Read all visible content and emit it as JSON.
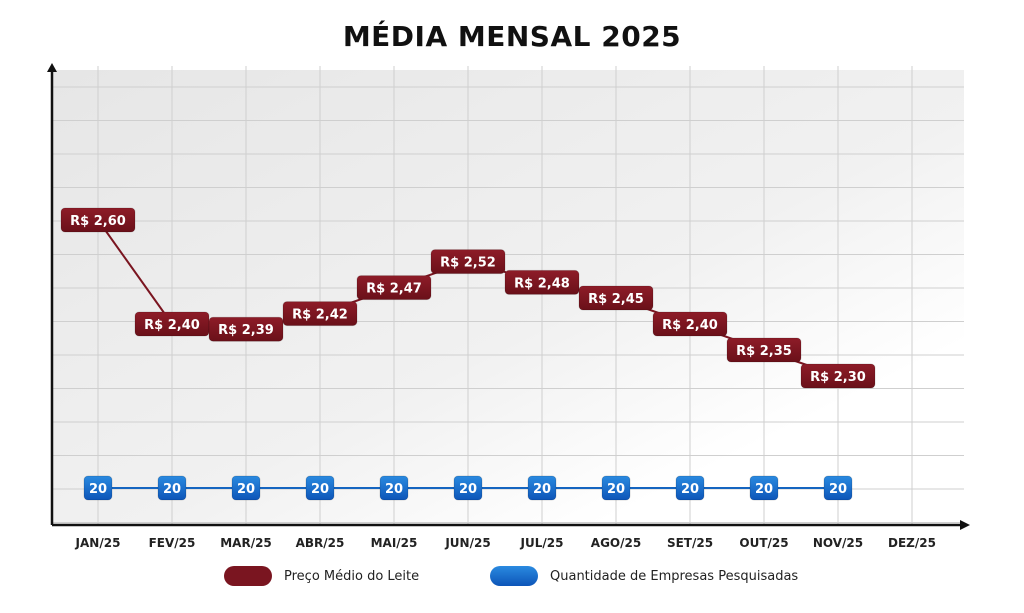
{
  "chart_data": {
    "type": "line",
    "title": "MÉDIA MENSAL 2025",
    "xlabel": "",
    "ylabel": "",
    "categories": [
      "JAN/25",
      "FEV/25",
      "MAR/25",
      "ABR/25",
      "MAI/25",
      "JUN/25",
      "JUL/25",
      "AGO/25",
      "SET/25",
      "OUT/25",
      "NOV/25",
      "DEZ/25"
    ],
    "series": [
      {
        "name": "Preço Médio do Leite",
        "color": "#7a1520",
        "values": [
          2.6,
          2.4,
          2.39,
          2.42,
          2.47,
          2.52,
          2.48,
          2.45,
          2.4,
          2.35,
          2.3,
          null
        ],
        "labels": [
          "R$ 2,60",
          "R$ 2,40",
          "R$ 2,39",
          "R$ 2,42",
          "R$ 2,47",
          "R$ 2,52",
          "R$ 2,48",
          "R$ 2,45",
          "R$ 2,40",
          "R$ 2,35",
          "R$ 2,30",
          null
        ]
      },
      {
        "name": "Quantidade de Empresas Pesquisadas",
        "color": "#1565c0",
        "values": [
          20,
          20,
          20,
          20,
          20,
          20,
          20,
          20,
          20,
          20,
          20,
          null
        ],
        "labels": [
          "20",
          "20",
          "20",
          "20",
          "20",
          "20",
          "20",
          "20",
          "20",
          "20",
          "20",
          null
        ]
      }
    ],
    "grid": true,
    "legend_position": "bottom"
  }
}
